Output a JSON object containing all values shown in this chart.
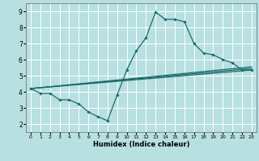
{
  "xlabel": "Humidex (Indice chaleur)",
  "bg_color": "#b8e0e0",
  "grid_color": "#ffffff",
  "line_color": "#1a6b6b",
  "xlim": [
    -0.5,
    23.5
  ],
  "ylim": [
    1.5,
    9.5
  ],
  "xticks": [
    0,
    1,
    2,
    3,
    4,
    5,
    6,
    7,
    8,
    9,
    10,
    11,
    12,
    13,
    14,
    15,
    16,
    17,
    18,
    19,
    20,
    21,
    22,
    23
  ],
  "yticks": [
    2,
    3,
    4,
    5,
    6,
    7,
    8,
    9
  ],
  "main_line": {
    "x": [
      0,
      1,
      2,
      3,
      4,
      5,
      6,
      7,
      8,
      9,
      10,
      11,
      12,
      13,
      14,
      15,
      16,
      17,
      18,
      19,
      20,
      21,
      22,
      23
    ],
    "y": [
      4.2,
      3.9,
      3.9,
      3.5,
      3.5,
      3.25,
      2.75,
      2.45,
      2.2,
      3.8,
      5.35,
      6.55,
      7.35,
      8.95,
      8.5,
      8.5,
      8.35,
      7.0,
      6.4,
      6.3,
      6.0,
      5.8,
      5.35,
      5.35
    ]
  },
  "flat_lines": [
    {
      "x": [
        0,
        23
      ],
      "y": [
        4.2,
        5.35
      ]
    },
    {
      "x": [
        0,
        23
      ],
      "y": [
        4.2,
        5.45
      ]
    },
    {
      "x": [
        0,
        23
      ],
      "y": [
        4.2,
        5.55
      ]
    }
  ]
}
